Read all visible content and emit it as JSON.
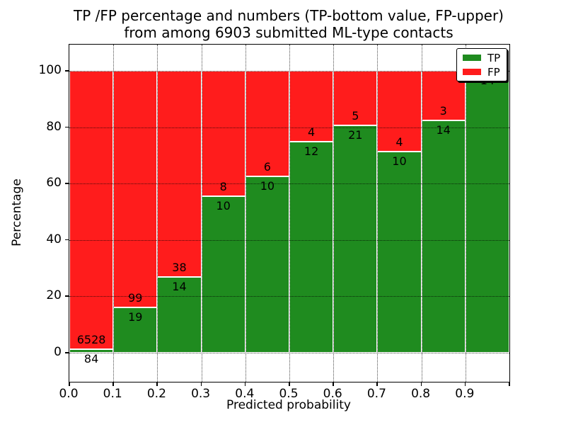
{
  "chart_data": {
    "type": "bar",
    "stacked_percentage": true,
    "title_lines": [
      "TP /FP percentage and numbers (TP-bottom value, FP-upper)",
      "from among 6903 submitted ML-type contacts"
    ],
    "xlabel": "Predicted probability",
    "ylabel": "Percentage",
    "total_contacts": 6903,
    "bins": [
      "0.0-0.1",
      "0.1-0.2",
      "0.2-0.3",
      "0.3-0.4",
      "0.4-0.5",
      "0.5-0.6",
      "0.6-0.7",
      "0.7-0.8",
      "0.8-0.9",
      "0.9-1.0"
    ],
    "series": [
      {
        "name": "TP",
        "color": "#1f8b1f",
        "values": [
          84,
          19,
          14,
          10,
          10,
          12,
          21,
          10,
          14,
          14
        ]
      },
      {
        "name": "FP",
        "color": "#ff1c1c",
        "values": [
          6528,
          99,
          38,
          8,
          6,
          4,
          5,
          4,
          3,
          0
        ]
      }
    ],
    "tp_percent_of_bin": [
      1.3,
      16.1,
      26.9,
      55.6,
      62.5,
      75.0,
      80.8,
      71.4,
      82.4,
      100.0
    ],
    "x_tick_labels": [
      "0.0",
      "0.1",
      "0.2",
      "0.3",
      "0.4",
      "0.5",
      "0.6",
      "0.7",
      "0.8",
      "0.9"
    ],
    "y_tick_values": [
      0,
      20,
      40,
      60,
      80,
      100
    ],
    "y_tick_labels": [
      "0",
      "20",
      "40",
      "60",
      "80",
      "100"
    ],
    "xlim": [
      0.0,
      1.0
    ],
    "ylim_display": [
      -11,
      110
    ],
    "grid": "dotted",
    "legend": {
      "position": "upper right",
      "entries": [
        {
          "label": "TP",
          "color": "#1f8b1f"
        },
        {
          "label": "FP",
          "color": "#ff1c1c"
        }
      ]
    }
  }
}
